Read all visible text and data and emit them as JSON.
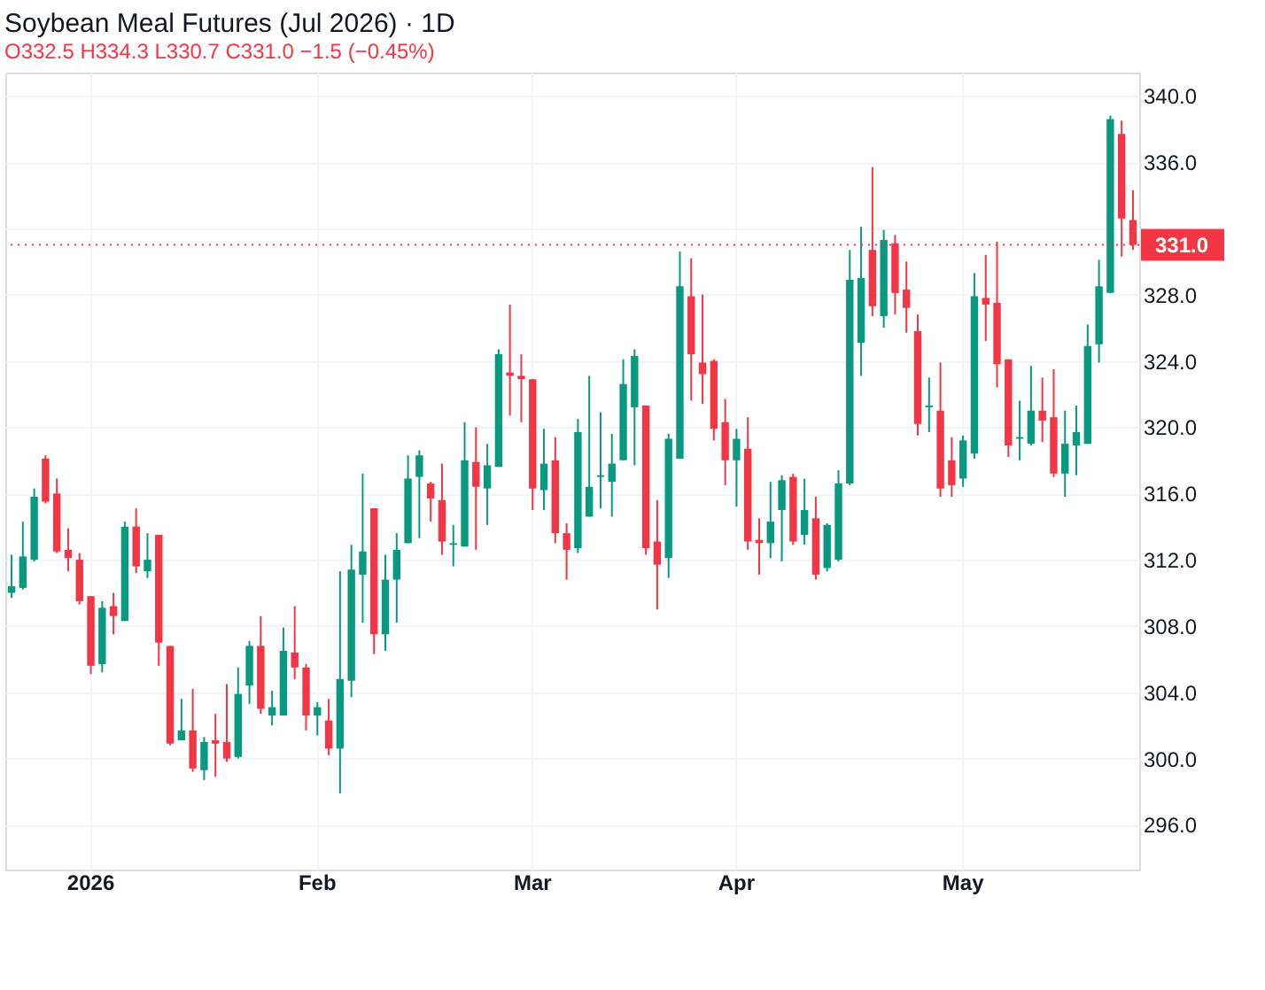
{
  "chart_data": {
    "type": "candlestick",
    "title": "Soybean Meal Futures (Jul 2026) · 1D",
    "annotations": [
      "O332.5 H334.3 L330.7 C331.0 −1.5 (−0.45%)"
    ],
    "categories": [
      null,
      null,
      null,
      null,
      null,
      null,
      null,
      "2026",
      null,
      null,
      null,
      null,
      null,
      null,
      null,
      null,
      null,
      null,
      null,
      null,
      null,
      null,
      null,
      null,
      null,
      null,
      null,
      "Feb",
      null,
      null,
      null,
      null,
      null,
      null,
      null,
      null,
      null,
      null,
      null,
      null,
      null,
      null,
      null,
      null,
      null,
      null,
      "Mar",
      null,
      null,
      null,
      null,
      null,
      null,
      null,
      null,
      null,
      null,
      null,
      null,
      null,
      null,
      null,
      null,
      null,
      "Apr",
      null,
      null,
      null,
      null,
      null,
      null,
      null,
      null,
      null,
      null,
      null,
      null,
      null,
      null,
      null,
      null,
      null,
      null,
      null,
      "May",
      null,
      null,
      null,
      null,
      null,
      null,
      null,
      null,
      null,
      null,
      null,
      null,
      null,
      null,
      null
    ],
    "ohlc": [
      [
        310.0,
        312.3,
        309.7,
        310.4
      ],
      [
        310.3,
        314.3,
        310.2,
        312.2
      ],
      [
        312.0,
        316.3,
        311.9,
        315.8
      ],
      [
        318.1,
        318.3,
        315.4,
        315.5
      ],
      [
        316.0,
        316.9,
        312.4,
        312.5
      ],
      [
        312.6,
        313.9,
        311.3,
        312.1
      ],
      [
        312.0,
        312.4,
        309.3,
        309.5
      ],
      [
        309.8,
        309.8,
        305.1,
        305.6
      ],
      [
        305.7,
        309.5,
        305.2,
        309.1
      ],
      [
        309.2,
        310.0,
        307.5,
        308.6
      ],
      [
        308.3,
        314.3,
        308.3,
        314.0
      ],
      [
        314.0,
        315.1,
        311.2,
        311.6
      ],
      [
        311.3,
        313.6,
        310.9,
        312.0
      ],
      [
        313.5,
        313.5,
        305.6,
        307.0
      ],
      [
        306.8,
        306.8,
        300.8,
        300.9
      ],
      [
        301.1,
        303.6,
        301.1,
        301.7
      ],
      [
        301.7,
        304.2,
        299.2,
        299.4
      ],
      [
        299.3,
        301.3,
        298.7,
        301.0
      ],
      [
        301.1,
        302.7,
        298.9,
        300.9
      ],
      [
        301.0,
        304.5,
        299.8,
        300.0
      ],
      [
        300.1,
        305.5,
        300.0,
        303.9
      ],
      [
        304.4,
        307.1,
        303.3,
        306.8
      ],
      [
        306.8,
        308.6,
        302.7,
        303.0
      ],
      [
        302.6,
        304.1,
        302.0,
        303.1
      ],
      [
        302.6,
        307.9,
        302.6,
        306.5
      ],
      [
        306.4,
        309.2,
        304.8,
        305.5
      ],
      [
        305.5,
        305.7,
        301.7,
        302.6
      ],
      [
        302.6,
        303.4,
        301.4,
        303.1
      ],
      [
        302.3,
        303.6,
        300.2,
        300.6
      ],
      [
        300.6,
        311.3,
        297.9,
        304.8
      ],
      [
        304.7,
        312.9,
        303.7,
        311.4
      ],
      [
        311.1,
        317.2,
        308.2,
        312.5
      ],
      [
        315.1,
        315.1,
        306.3,
        307.5
      ],
      [
        307.5,
        312.3,
        306.5,
        310.8
      ],
      [
        310.8,
        313.6,
        308.2,
        312.6
      ],
      [
        313.0,
        318.3,
        313.0,
        316.9
      ],
      [
        317.0,
        318.6,
        313.3,
        318.3
      ],
      [
        316.6,
        316.7,
        314.3,
        315.7
      ],
      [
        315.6,
        317.8,
        312.3,
        313.1
      ],
      [
        312.9,
        314.1,
        311.6,
        313.0
      ],
      [
        312.8,
        320.3,
        312.8,
        318.0
      ],
      [
        317.9,
        320.0,
        312.6,
        316.4
      ],
      [
        316.3,
        319.0,
        314.1,
        317.7
      ],
      [
        317.6,
        324.7,
        317.6,
        324.4
      ],
      [
        323.3,
        327.4,
        320.7,
        323.1
      ],
      [
        323.1,
        324.4,
        320.3,
        322.9
      ],
      [
        322.9,
        322.9,
        315.0,
        316.3
      ],
      [
        316.2,
        319.9,
        315.0,
        317.8
      ],
      [
        318.0,
        319.4,
        313.0,
        313.6
      ],
      [
        313.6,
        314.2,
        310.8,
        312.6
      ],
      [
        312.7,
        320.5,
        312.4,
        319.7
      ],
      [
        314.6,
        323.1,
        314.6,
        316.4
      ],
      [
        317.0,
        320.9,
        315.1,
        317.1
      ],
      [
        316.7,
        319.6,
        314.6,
        317.8
      ],
      [
        318.0,
        324.1,
        318.0,
        322.6
      ],
      [
        321.2,
        324.7,
        317.7,
        324.3
      ],
      [
        321.3,
        321.3,
        312.3,
        312.7
      ],
      [
        313.1,
        315.6,
        309.0,
        311.7
      ],
      [
        312.1,
        319.6,
        310.9,
        319.3
      ],
      [
        318.1,
        330.6,
        318.1,
        328.5
      ],
      [
        327.9,
        330.2,
        321.6,
        324.4
      ],
      [
        323.9,
        328.0,
        321.4,
        323.2
      ],
      [
        324.0,
        324.1,
        319.2,
        319.9
      ],
      [
        320.3,
        321.7,
        316.5,
        318.0
      ],
      [
        318.0,
        319.9,
        315.2,
        319.3
      ],
      [
        318.7,
        320.6,
        312.6,
        313.1
      ],
      [
        313.2,
        314.5,
        311.1,
        313.0
      ],
      [
        313.0,
        316.7,
        312.1,
        314.3
      ],
      [
        315.0,
        317.1,
        311.9,
        316.8
      ],
      [
        317.0,
        317.2,
        312.9,
        313.1
      ],
      [
        313.5,
        316.9,
        312.9,
        315.0
      ],
      [
        314.5,
        315.8,
        310.8,
        311.1
      ],
      [
        311.5,
        314.2,
        311.3,
        314.1
      ],
      [
        312.0,
        317.4,
        311.9,
        316.6
      ],
      [
        316.6,
        330.7,
        316.5,
        328.9
      ],
      [
        325.1,
        332.1,
        323.1,
        329.0
      ],
      [
        330.7,
        335.7,
        326.7,
        327.3
      ],
      [
        326.7,
        331.9,
        326.0,
        331.3
      ],
      [
        331.1,
        331.6,
        326.8,
        328.1
      ],
      [
        328.3,
        330.0,
        325.7,
        327.2
      ],
      [
        325.8,
        326.8,
        319.5,
        320.2
      ],
      [
        321.2,
        323.0,
        319.7,
        321.3
      ],
      [
        321.0,
        323.9,
        315.8,
        316.3
      ],
      [
        318.0,
        319.4,
        315.8,
        316.5
      ],
      [
        316.9,
        319.5,
        316.4,
        319.2
      ],
      [
        318.4,
        329.3,
        318.1,
        327.9
      ],
      [
        327.8,
        330.4,
        325.2,
        327.4
      ],
      [
        327.5,
        331.2,
        322.4,
        323.8
      ],
      [
        324.1,
        324.1,
        318.2,
        318.9
      ],
      [
        319.3,
        321.6,
        318.0,
        319.4
      ],
      [
        319.0,
        323.7,
        318.9,
        321.0
      ],
      [
        321.0,
        323.0,
        319.1,
        320.4
      ],
      [
        320.6,
        323.5,
        317.0,
        317.2
      ],
      [
        317.2,
        321.0,
        315.8,
        319.0
      ],
      [
        318.9,
        321.3,
        317.1,
        319.7
      ],
      [
        319.0,
        326.2,
        319.0,
        324.9
      ],
      [
        325.0,
        330.1,
        323.9,
        328.5
      ],
      [
        328.1,
        338.8,
        328.1,
        338.6
      ],
      [
        337.7,
        338.5,
        330.3,
        332.6
      ],
      [
        332.5,
        334.3,
        330.7,
        331.0
      ]
    ],
    "colors": [
      "#089981",
      "#089981",
      "#089981",
      "#f23645",
      "#f23645",
      "#f23645",
      "#f23645",
      "#f23645",
      "#089981",
      "#f23645",
      "#089981",
      "#f23645",
      "#089981",
      "#f23645",
      "#f23645",
      "#089981",
      "#f23645",
      "#089981",
      "#f23645",
      "#f23645",
      "#089981",
      "#089981",
      "#f23645",
      "#089981",
      "#089981",
      "#f23645",
      "#f23645",
      "#089981",
      "#f23645",
      "#089981",
      "#089981",
      "#089981",
      "#f23645",
      "#089981",
      "#089981",
      "#089981",
      "#089981",
      "#f23645",
      "#f23645",
      "#089981",
      "#089981",
      "#f23645",
      "#089981",
      "#089981",
      "#f23645",
      "#f23645",
      "#f23645",
      "#089981",
      "#f23645",
      "#f23645",
      "#089981",
      "#089981",
      "#089981",
      "#089981",
      "#089981",
      "#089981",
      "#f23645",
      "#f23645",
      "#089981",
      "#089981",
      "#f23645",
      "#f23645",
      "#f23645",
      "#f23645",
      "#089981",
      "#f23645",
      "#f23645",
      "#089981",
      "#089981",
      "#f23645",
      "#089981",
      "#f23645",
      "#089981",
      "#089981",
      "#089981",
      "#089981",
      "#f23645",
      "#089981",
      "#f23645",
      "#f23645",
      "#f23645",
      "#089981",
      "#f23645",
      "#f23645",
      "#089981",
      "#089981",
      "#f23645",
      "#f23645",
      "#f23645",
      "#089981",
      "#089981",
      "#f23645",
      "#f23645",
      "#089981",
      "#089981",
      "#089981",
      "#089981",
      "#089981",
      "#f23645",
      "#f23645"
    ],
    "ylim": [
      293.3,
      341.4
    ],
    "yticks": [
      {
        "value": 296,
        "label": "296.0"
      },
      {
        "value": 300,
        "label": "300.0"
      },
      {
        "value": 304,
        "label": "304.0"
      },
      {
        "value": 308,
        "label": "308.0"
      },
      {
        "value": 312,
        "label": "312.0"
      },
      {
        "value": 316,
        "label": "316.0"
      },
      {
        "value": 320,
        "label": "320.0"
      },
      {
        "value": 324,
        "label": "324.0"
      },
      {
        "value": 328,
        "label": "328.0"
      },
      {
        "value": 332,
        "label": null
      },
      {
        "value": 336,
        "label": "336.0"
      },
      {
        "value": 340,
        "label": "340.0"
      }
    ],
    "ref_lines": [
      {
        "axis": "y",
        "value": 331.0,
        "label": "331.0",
        "color": "#f23645",
        "line_style": "dotted"
      }
    ],
    "grid": true
  }
}
